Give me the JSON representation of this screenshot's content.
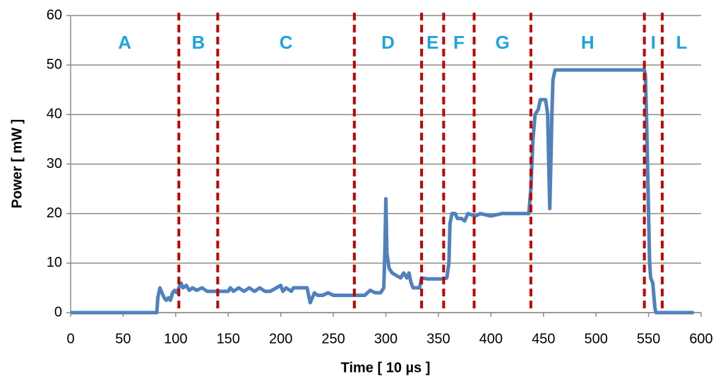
{
  "chart_data": {
    "type": "line",
    "xlabel": "Time [ 10 µs ]",
    "ylabel": "Power [ mW ]",
    "xlim": [
      0,
      600
    ],
    "xticks": [
      0,
      50,
      100,
      150,
      200,
      250,
      300,
      350,
      400,
      450,
      500,
      550,
      600
    ],
    "ylim": [
      0,
      60
    ],
    "yticks": [
      0,
      10,
      20,
      30,
      40,
      50,
      60
    ],
    "grid": true,
    "boundaries": [
      103,
      140,
      270,
      334,
      355,
      384,
      438,
      546,
      563
    ],
    "boundary_color": "#c00000",
    "regions": [
      "A",
      "B",
      "C",
      "D",
      "E",
      "F",
      "G",
      "H",
      "I",
      "L"
    ],
    "region_color": "#1fa3e0",
    "series": [
      {
        "name": "Power",
        "color": "#4f81bd",
        "x": [
          0,
          82,
          83,
          85,
          87,
          89,
          91,
          93,
          95,
          97,
          99,
          101,
          103,
          105,
          107,
          110,
          113,
          116,
          120,
          125,
          130,
          150,
          152,
          155,
          160,
          165,
          170,
          175,
          180,
          185,
          190,
          200,
          202,
          205,
          210,
          212,
          225,
          227,
          228,
          230,
          232,
          235,
          240,
          245,
          250,
          270,
          280,
          285,
          290,
          295,
          298,
          299,
          300,
          301,
          303,
          306,
          310,
          314,
          317,
          320,
          322,
          324,
          326,
          332,
          334,
          340,
          355,
          358,
          360,
          361,
          363,
          366,
          368,
          372,
          375,
          378,
          385,
          390,
          400,
          410,
          425,
          436,
          438,
          440,
          442,
          445,
          447,
          452,
          454,
          455,
          456,
          457,
          458,
          459,
          461,
          546,
          547,
          548,
          549,
          550,
          551,
          552,
          554,
          556,
          557,
          593
        ],
        "values": [
          0,
          0,
          3,
          5,
          4,
          3,
          2.5,
          3,
          2.5,
          4,
          4.5,
          4,
          5,
          6,
          5,
          5.5,
          4.5,
          5,
          4.5,
          5,
          4.3,
          4.3,
          5,
          4.3,
          5,
          4.3,
          5,
          4.3,
          5,
          4.3,
          4.3,
          5.5,
          4.3,
          5,
          4.3,
          5,
          5,
          3,
          2,
          3,
          4,
          3.5,
          3.5,
          4,
          3.5,
          3.5,
          3.5,
          4.5,
          4,
          4,
          5,
          12,
          23,
          12,
          9,
          8,
          7.5,
          7,
          8,
          7,
          8,
          6,
          5,
          5,
          7,
          6.8,
          6.8,
          7,
          10,
          18,
          20,
          20,
          19,
          19,
          18.5,
          20,
          19.5,
          20,
          19.5,
          20,
          20,
          20,
          25,
          35,
          40,
          41,
          43,
          43,
          40,
          30,
          21,
          30,
          40,
          47,
          49,
          49,
          48,
          40,
          30,
          20,
          10,
          7,
          6,
          1,
          0,
          0
        ]
      }
    ]
  }
}
